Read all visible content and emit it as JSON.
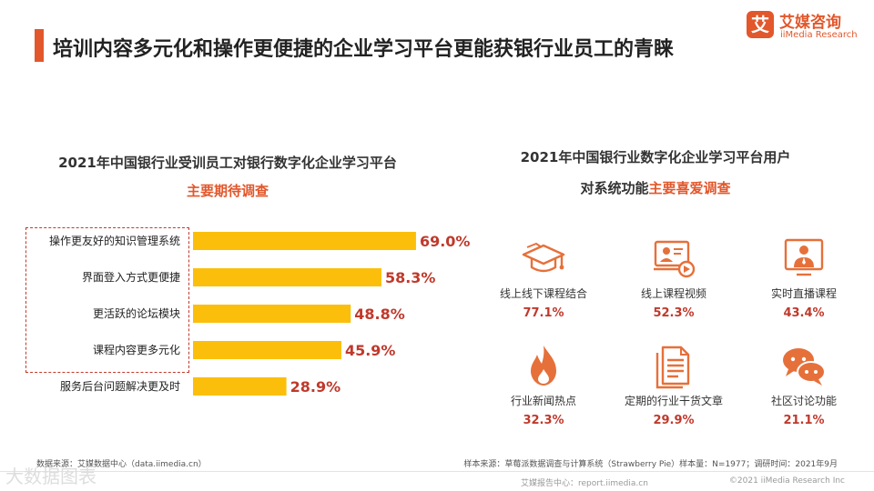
{
  "colors": {
    "accent": "#e2572b",
    "bar": "#fbbf0b",
    "value": "#c0392b",
    "icon": "#e6703a"
  },
  "header": {
    "title": "培训内容多元化和操作更便捷的企业学习平台更能获银行业员工的青睐"
  },
  "logo": {
    "mark": "艾",
    "name_cn": "艾媒咨询",
    "name_en": "iiMedia Research"
  },
  "chart_data": {
    "type": "bar",
    "orientation": "horizontal",
    "title": "2021年中国银行业受训员工对银行数字化企业学习平台",
    "subtitle": "主要期待调查",
    "categories": [
      "操作更友好的知识管理系统",
      "界面登入方式更便捷",
      "更活跃的论坛模块",
      "课程内容更多元化",
      "服务后台问题解决更及时"
    ],
    "values": [
      69.0,
      58.3,
      48.8,
      45.9,
      28.9
    ],
    "value_labels": [
      "69.0%",
      "58.3%",
      "48.8%",
      "45.9%",
      "28.9%"
    ],
    "unit": "%",
    "xlim": [
      0,
      100
    ],
    "grid": false,
    "legend": "none",
    "highlighted_categories": [
      "操作更友好的知识管理系统",
      "界面登入方式更便捷",
      "更活跃的论坛模块",
      "课程内容更多元化"
    ]
  },
  "features": {
    "title_line1": "2021年中国银行业数字化企业学习平台用户",
    "title_line2_prefix": "对系统功能",
    "title_line2_highlight": "主要喜爱调查",
    "items": [
      {
        "label": "线上线下课程结合",
        "value": "77.1%",
        "icon": "graduation-cap-icon"
      },
      {
        "label": "线上课程视频",
        "value": "52.3%",
        "icon": "video-lecture-icon"
      },
      {
        "label": "实时直播课程",
        "value": "43.4%",
        "icon": "live-presenter-icon"
      },
      {
        "label": "行业新闻热点",
        "value": "32.3%",
        "icon": "flame-icon"
      },
      {
        "label": "定期的行业干货文章",
        "value": "29.9%",
        "icon": "document-icon"
      },
      {
        "label": "社区讨论功能",
        "value": "21.1%",
        "icon": "chat-bubbles-icon"
      }
    ]
  },
  "footer": {
    "source_left": "数据来源：艾媒数据中心（data.iimedia.cn）",
    "source_right": "样本来源：草莓派数据调查与计算系统（Strawberry Pie）样本量：N=1977；调研时间：2021年9月",
    "report_center": "艾媒报告中心：report.iimedia.cn",
    "copyright": "©2021  iiMedia Research  Inc",
    "watermark": "大数据图表"
  }
}
